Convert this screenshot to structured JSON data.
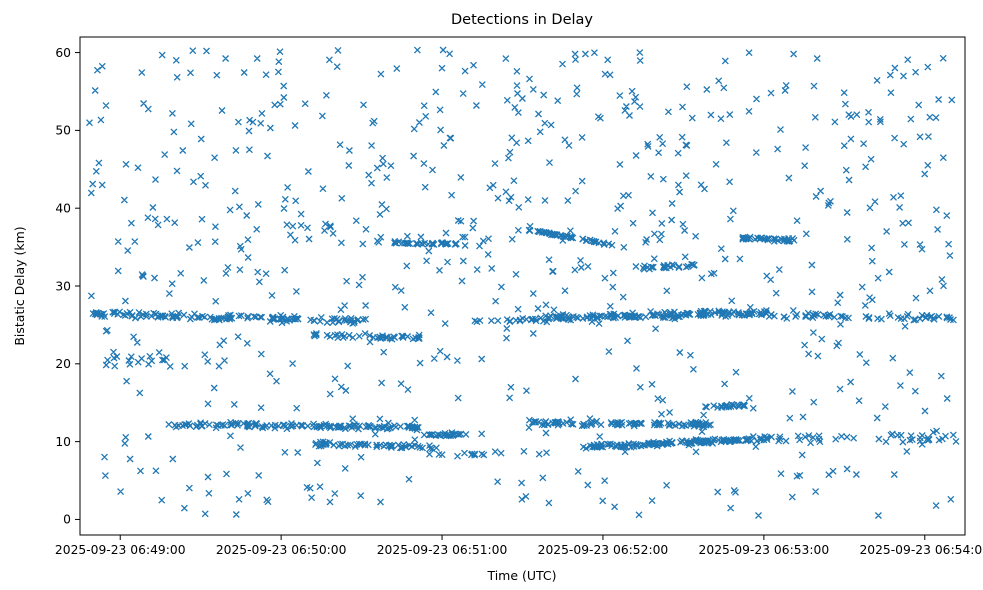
{
  "chart_data": {
    "type": "scatter",
    "title": "Detections in Delay",
    "xlabel": "Time (UTC)",
    "ylabel": "Bistatic Delay (km)",
    "marker": "x",
    "marker_color": "#1f77b4",
    "grid": false,
    "legend": "none",
    "x_tick_labels": [
      "2025-09-23 06:49:00",
      "2025-09-23 06:50:00",
      "2025-09-23 06:51:00",
      "2025-09-23 06:52:00",
      "2025-09-23 06:53:00",
      "2025-09-23 06:54:00"
    ],
    "x_axis": {
      "unit": "seconds from 06:49:00 UTC",
      "start": -15,
      "end": 315,
      "tick_offsets": [
        0,
        60,
        120,
        180,
        240,
        300
      ]
    },
    "y_ticks": [
      0,
      10,
      20,
      30,
      40,
      50,
      60
    ],
    "ylim": [
      -2,
      62
    ],
    "seed": 42,
    "note": "Dense scatter of ~1700 detections; point_groups are distribution summaries read from the plot: uniform background clutter 0-60 km plus dense tracks/bands near 26 km, 12 km, ~9.5-10.5 km, short segments near 35.5 km, a descending streak 37->35 km, and clumps near 36, 32.5 and 14.5 km.",
    "point_groups": [
      {
        "kind": "uniform",
        "t0": -12,
        "t1": 312,
        "y0": 0.5,
        "y1": 60.5,
        "count": 520
      },
      {
        "kind": "uniform",
        "t0": -12,
        "t1": 312,
        "y0": 30,
        "y1": 60,
        "count": 150
      },
      {
        "kind": "band",
        "t0": -12,
        "t1": 92,
        "ys": 26.4,
        "ye": 25.5,
        "jitter": 0.45,
        "count": 130
      },
      {
        "kind": "band",
        "t0": -8,
        "t1": 40,
        "ys": 20.3,
        "ye": 20.8,
        "jitter": 1.3,
        "count": 22
      },
      {
        "kind": "band",
        "t0": 72,
        "t1": 112,
        "ys": 23.7,
        "ye": 23.4,
        "jitter": 0.35,
        "count": 40
      },
      {
        "kind": "band",
        "t0": 132,
        "t1": 160,
        "ys": 25.6,
        "ye": 25.7,
        "jitter": 0.4,
        "count": 22
      },
      {
        "kind": "band",
        "t0": 158,
        "t1": 242,
        "ys": 25.9,
        "ye": 26.6,
        "jitter": 0.45,
        "count": 150
      },
      {
        "kind": "band",
        "t0": 242,
        "t1": 312,
        "ys": 26.2,
        "ye": 25.9,
        "jitter": 0.4,
        "count": 55
      },
      {
        "kind": "band",
        "t0": 18,
        "t1": 112,
        "ys": 12.2,
        "ye": 11.8,
        "jitter": 0.4,
        "count": 120
      },
      {
        "kind": "band",
        "t0": 72,
        "t1": 118,
        "ys": 9.7,
        "ye": 9.3,
        "jitter": 0.35,
        "count": 55
      },
      {
        "kind": "band",
        "t0": 112,
        "t1": 136,
        "ys": 10.8,
        "ye": 11.0,
        "jitter": 0.3,
        "count": 25
      },
      {
        "kind": "band",
        "t0": 118,
        "t1": 160,
        "ys": 8.3,
        "ye": 8.5,
        "jitter": 0.4,
        "count": 15
      },
      {
        "kind": "band",
        "t0": 152,
        "t1": 222,
        "ys": 12.4,
        "ye": 12.2,
        "jitter": 0.35,
        "count": 95
      },
      {
        "kind": "band",
        "t0": 172,
        "t1": 242,
        "ys": 9.3,
        "ye": 10.4,
        "jitter": 0.35,
        "count": 140
      },
      {
        "kind": "band",
        "t0": 242,
        "t1": 312,
        "ys": 10.6,
        "ye": 10.2,
        "jitter": 1.0,
        "count": 40
      },
      {
        "kind": "band",
        "t0": 152,
        "t1": 188,
        "ys": 37.2,
        "ye": 35.0,
        "jitter": 0.15,
        "count": 45
      },
      {
        "kind": "band",
        "t0": 95,
        "t1": 126,
        "ys": 35.6,
        "ye": 35.4,
        "jitter": 0.2,
        "count": 35
      },
      {
        "kind": "band",
        "t0": 232,
        "t1": 252,
        "ys": 36.1,
        "ye": 35.9,
        "jitter": 0.25,
        "count": 40
      },
      {
        "kind": "band",
        "t0": 192,
        "t1": 215,
        "ys": 32.3,
        "ye": 32.7,
        "jitter": 0.3,
        "count": 28
      },
      {
        "kind": "band",
        "t0": 218,
        "t1": 233,
        "ys": 14.5,
        "ye": 14.7,
        "jitter": 0.2,
        "count": 22
      }
    ]
  }
}
